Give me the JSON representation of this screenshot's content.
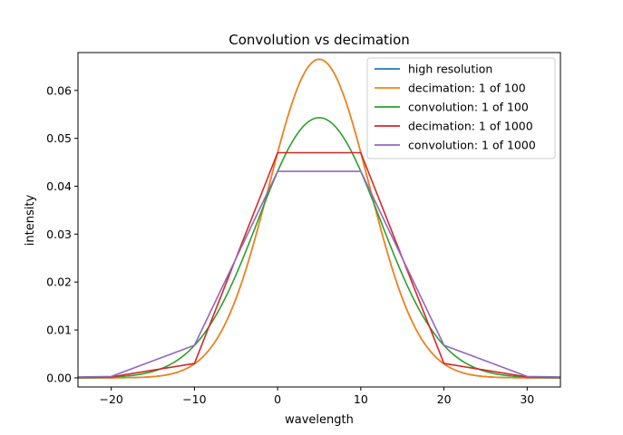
{
  "chart_data": {
    "type": "line",
    "title": "Convolution vs decimation",
    "xlabel": "wavelength",
    "ylabel": "intensity",
    "xlim": [
      -24,
      34
    ],
    "ylim": [
      -0.0019,
      0.0679
    ],
    "xticks": [
      -20,
      -10,
      0,
      10,
      20,
      30
    ],
    "yticks": [
      0.0,
      0.01,
      0.02,
      0.03,
      0.04,
      0.05,
      0.06
    ],
    "ytick_labels": [
      "0.00",
      "0.01",
      "0.02",
      "0.03",
      "0.04",
      "0.05",
      "0.06"
    ],
    "grid": false,
    "legend_position": "top-right",
    "gaussian_center": 5,
    "gaussian_sigma": 6,
    "series": [
      {
        "name": "high resolution",
        "color": "#1f77b4",
        "kind": "gaussian",
        "peak": 0.0665
      },
      {
        "name": "decimation: 1 of 100",
        "color": "#ff7f0e",
        "kind": "gaussian",
        "peak": 0.0665
      },
      {
        "name": "convolution: 1 of 100",
        "color": "#2ca02c",
        "kind": "gaussian",
        "peak": 0.0543,
        "sigma": 7.35
      },
      {
        "name": "decimation: 1 of 1000",
        "color": "#d62728",
        "kind": "points",
        "x": [
          -24,
          -20,
          -10,
          0,
          10,
          20,
          30,
          34
        ],
        "y": [
          0.0001,
          0.0002,
          0.003,
          0.047,
          0.047,
          0.003,
          0.0002,
          0.0001
        ]
      },
      {
        "name": "convolution: 1 of 1000",
        "color": "#9467bd",
        "kind": "points",
        "x": [
          -24,
          -20,
          -10,
          0,
          10,
          20,
          30,
          34
        ],
        "y": [
          0.0002,
          0.0003,
          0.0068,
          0.0431,
          0.0431,
          0.0068,
          0.0003,
          0.0002
        ]
      }
    ]
  }
}
